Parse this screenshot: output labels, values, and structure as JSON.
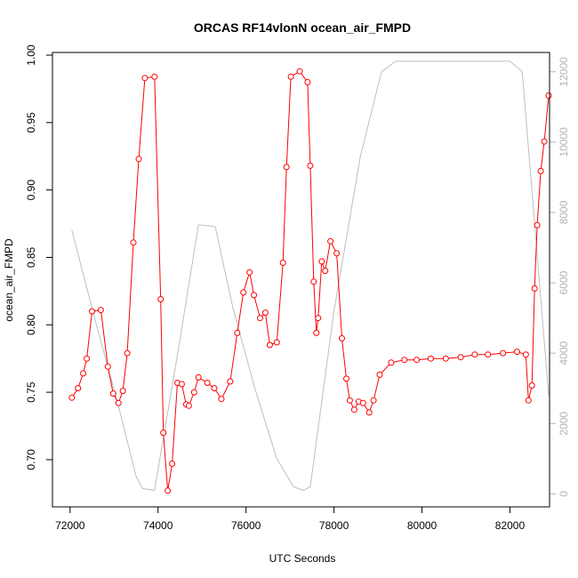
{
  "chart_data": {
    "type": "line",
    "title": "ORCAS RF14vlonN ocean_air_FMPD",
    "xlabel": "UTC Seconds",
    "ylabel": "ocean_air_FMPD",
    "xlim": [
      71600,
      82900
    ],
    "ylim": [
      0.665,
      1.002
    ],
    "y2lim": [
      -370,
      12550
    ],
    "x_ticks": [
      72000,
      74000,
      76000,
      78000,
      80000,
      82000
    ],
    "y_ticks": [
      0.7,
      0.75,
      0.8,
      0.85,
      0.9,
      0.95,
      1.0
    ],
    "y2_ticks": [
      0,
      2000,
      4000,
      6000,
      8000,
      10000,
      12000
    ],
    "colors": {
      "primary": "#ff0000",
      "secondary": "#bebebe"
    },
    "series": [
      {
        "axis": "left",
        "style": "line+points",
        "color": "#ff0000",
        "x": [
          72040,
          72180,
          72300,
          72380,
          72500,
          72700,
          72860,
          72980,
          73100,
          73200,
          73300,
          73440,
          73560,
          73700,
          73920,
          74060,
          74120,
          74220,
          74320,
          74440,
          74540,
          74640,
          74700,
          74820,
          74920,
          75120,
          75280,
          75440,
          75640,
          75800,
          75940,
          76080,
          76180,
          76320,
          76440,
          76540,
          76700,
          76840,
          76920,
          77020,
          77220,
          77400,
          77460,
          77540,
          77600,
          77640,
          77720,
          77800,
          77920,
          78060,
          78180,
          78280,
          78360,
          78460,
          78560,
          78660,
          78800,
          78900,
          79040,
          79300,
          79600,
          79880,
          80200,
          80540,
          80880,
          81200,
          81500,
          81840,
          82160,
          82360,
          82420,
          82500,
          82560,
          82620,
          82700,
          82780,
          82880
        ],
        "y": [
          0.746,
          0.753,
          0.764,
          0.775,
          0.81,
          0.811,
          0.769,
          0.749,
          0.742,
          0.751,
          0.779,
          0.861,
          0.923,
          0.983,
          0.984,
          0.819,
          0.72,
          0.677,
          0.697,
          0.757,
          0.756,
          0.741,
          0.74,
          0.75,
          0.761,
          0.757,
          0.753,
          0.745,
          0.758,
          0.794,
          0.824,
          0.839,
          0.822,
          0.805,
          0.809,
          0.785,
          0.787,
          0.846,
          0.917,
          0.984,
          0.988,
          0.98,
          0.918,
          0.832,
          0.794,
          0.805,
          0.847,
          0.84,
          0.862,
          0.853,
          0.79,
          0.76,
          0.744,
          0.737,
          0.743,
          0.742,
          0.735,
          0.744,
          0.763,
          0.772,
          0.774,
          0.774,
          0.775,
          0.775,
          0.776,
          0.778,
          0.778,
          0.779,
          0.78,
          0.778,
          0.744,
          0.755,
          0.827,
          0.874,
          0.914,
          0.936,
          0.97
        ]
      },
      {
        "axis": "right",
        "style": "line",
        "color": "#bebebe",
        "x": [
          72040,
          72600,
          73100,
          73500,
          73650,
          73920,
          74500,
          74920,
          75300,
          75700,
          76200,
          76700,
          77080,
          77300,
          77460,
          78000,
          78600,
          79080,
          79400,
          80000,
          81000,
          82000,
          82280,
          82880
        ],
        "y": [
          7500,
          4800,
          2500,
          500,
          150,
          100,
          4400,
          7650,
          7600,
          5300,
          3000,
          1000,
          200,
          100,
          200,
          5200,
          9600,
          12000,
          12300,
          12300,
          12300,
          12300,
          12000,
          2800
        ]
      }
    ]
  }
}
